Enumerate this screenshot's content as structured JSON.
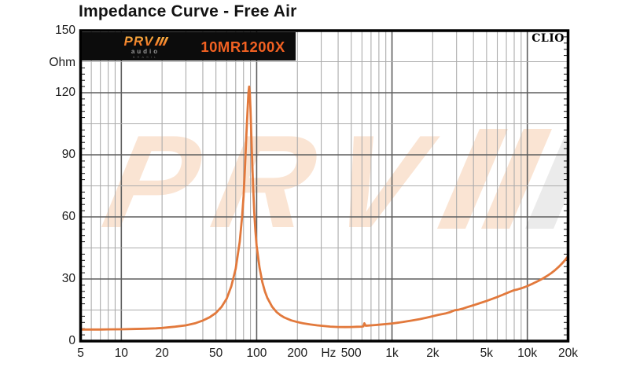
{
  "page": {
    "title": "Impedance Curve - Free Air"
  },
  "banner": {
    "logo_main": "PRV",
    "logo_sub": "audio",
    "logo_country": "BRASIL",
    "model": "10MR1200X"
  },
  "chart": {
    "software_badge": "CLIO",
    "watermark_text": "PRV",
    "colors": {
      "curve": "#E2793C",
      "accent_orange": "#F26122",
      "banner_bg": "#0C0C0C",
      "grid_minor": "#ACACAC",
      "grid_major": "#5E5E5E",
      "watermark": "#FAE4D3",
      "watermark_alt": "#EBEBEB",
      "border": "#000000"
    }
  },
  "chart_data": {
    "type": "line",
    "title": "Impedance Curve - Free Air",
    "xlabel": "Hz",
    "ylabel": "Ohm",
    "x_scale": "log",
    "xlim": [
      5,
      20000
    ],
    "ylim": [
      0,
      150
    ],
    "grid": true,
    "legend": "none",
    "x_ticks": [
      {
        "f": 5,
        "label": "5"
      },
      {
        "f": 10,
        "label": "10"
      },
      {
        "f": 20,
        "label": "20"
      },
      {
        "f": 50,
        "label": "50"
      },
      {
        "f": 100,
        "label": "100"
      },
      {
        "f": 200,
        "label": "200"
      },
      {
        "f": 340,
        "label": "Hz"
      },
      {
        "f": 500,
        "label": "500"
      },
      {
        "f": 1000,
        "label": "1k"
      },
      {
        "f": 2000,
        "label": "2k"
      },
      {
        "f": 5000,
        "label": "5k"
      },
      {
        "f": 10000,
        "label": "10k"
      },
      {
        "f": 20000,
        "label": "20k"
      }
    ],
    "y_ticks": [
      {
        "v": 150,
        "label": "150"
      },
      {
        "v": 120,
        "label": "120"
      },
      {
        "v": 90,
        "label": "90"
      },
      {
        "v": 60,
        "label": "60"
      },
      {
        "v": 30,
        "label": "30"
      },
      {
        "v": 0,
        "label": "0"
      }
    ],
    "y_unit_label": "Ohm",
    "y_major_step": 30,
    "y_minor_step": 15,
    "y_edge_tick_step": 3,
    "grid_frequencies_minor": [
      6,
      7,
      8,
      9,
      20,
      30,
      40,
      50,
      60,
      70,
      80,
      90,
      200,
      300,
      400,
      500,
      600,
      700,
      800,
      900,
      2000,
      3000,
      4000,
      5000,
      6000,
      7000,
      8000,
      9000
    ],
    "grid_frequencies_major": [
      10,
      100,
      1000,
      10000
    ],
    "series": [
      {
        "name": "Impedance (Free Air)",
        "color": "#E2793C",
        "resonance_peak": {
          "frequency_hz": 88,
          "impedance_ohm": 123
        },
        "points": [
          [
            5,
            5.6
          ],
          [
            6,
            5.6
          ],
          [
            7,
            5.6
          ],
          [
            8,
            5.65
          ],
          [
            10,
            5.7
          ],
          [
            12,
            5.8
          ],
          [
            15,
            5.95
          ],
          [
            18,
            6.15
          ],
          [
            20,
            6.35
          ],
          [
            25,
            6.95
          ],
          [
            30,
            7.6
          ],
          [
            35,
            8.6
          ],
          [
            40,
            9.9
          ],
          [
            45,
            11.5
          ],
          [
            50,
            13.6
          ],
          [
            55,
            16.5
          ],
          [
            60,
            20.5
          ],
          [
            65,
            26.5
          ],
          [
            70,
            35
          ],
          [
            75,
            48
          ],
          [
            78,
            60
          ],
          [
            80,
            70
          ],
          [
            82,
            84
          ],
          [
            84,
            100
          ],
          [
            86,
            114
          ],
          [
            87,
            120
          ],
          [
            88,
            123
          ],
          [
            89,
            120
          ],
          [
            90,
            112
          ],
          [
            92,
            93
          ],
          [
            94,
            76
          ],
          [
            96,
            62
          ],
          [
            98,
            53
          ],
          [
            100,
            46
          ],
          [
            105,
            35.5
          ],
          [
            110,
            28.5
          ],
          [
            115,
            24
          ],
          [
            120,
            20.8
          ],
          [
            130,
            16.6
          ],
          [
            140,
            14.1
          ],
          [
            150,
            12.5
          ],
          [
            160,
            11.4
          ],
          [
            180,
            10.0
          ],
          [
            200,
            9.2
          ],
          [
            220,
            8.6
          ],
          [
            250,
            8.0
          ],
          [
            280,
            7.6
          ],
          [
            300,
            7.4
          ],
          [
            350,
            7.0
          ],
          [
            400,
            6.8
          ],
          [
            450,
            6.75
          ],
          [
            500,
            6.8
          ],
          [
            550,
            6.9
          ],
          [
            600,
            7.0
          ],
          [
            615,
            7.1
          ],
          [
            625,
            8.6
          ],
          [
            640,
            7.4
          ],
          [
            660,
            7.5
          ],
          [
            700,
            7.6
          ],
          [
            750,
            7.75
          ],
          [
            800,
            7.9
          ],
          [
            900,
            8.2
          ],
          [
            1000,
            8.5
          ],
          [
            1100,
            8.85
          ],
          [
            1200,
            9.2
          ],
          [
            1400,
            9.9
          ],
          [
            1600,
            10.6
          ],
          [
            1800,
            11.3
          ],
          [
            2000,
            12.0
          ],
          [
            2200,
            12.7
          ],
          [
            2500,
            13.4
          ],
          [
            2700,
            14.0
          ],
          [
            2900,
            14.9
          ],
          [
            3100,
            15.1
          ],
          [
            3300,
            15.6
          ],
          [
            3600,
            16.4
          ],
          [
            4000,
            17.3
          ],
          [
            4500,
            18.4
          ],
          [
            5000,
            19.4
          ],
          [
            5500,
            20.4
          ],
          [
            6000,
            21.3
          ],
          [
            6500,
            22.2
          ],
          [
            7000,
            23.1
          ],
          [
            7500,
            23.9
          ],
          [
            8000,
            24.6
          ],
          [
            8500,
            25.0
          ],
          [
            9000,
            25.5
          ],
          [
            9500,
            26.0
          ],
          [
            10000,
            26.6
          ],
          [
            11000,
            27.8
          ],
          [
            12000,
            29.0
          ],
          [
            13000,
            30.2
          ],
          [
            14000,
            31.5
          ],
          [
            15000,
            32.8
          ],
          [
            16000,
            34.2
          ],
          [
            17000,
            35.8
          ],
          [
            18000,
            37.4
          ],
          [
            19000,
            39.1
          ],
          [
            20000,
            41.0
          ]
        ]
      }
    ]
  }
}
